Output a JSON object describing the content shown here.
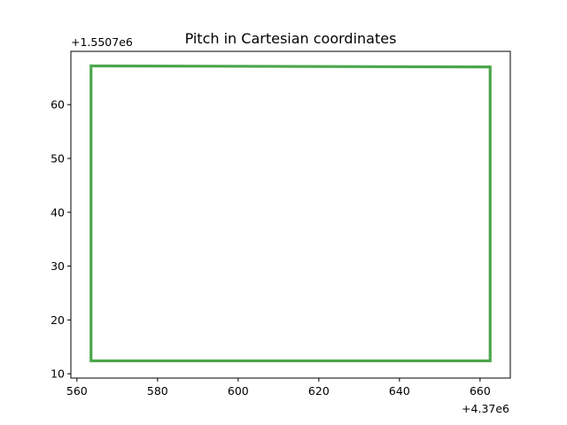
{
  "chart_data": {
    "type": "line",
    "title": "Pitch in Cartesian coordinates",
    "xlabel": "",
    "ylabel": "",
    "x_offset_label": "+4.37e6",
    "y_offset_label": "+1.5507e6",
    "xlim": [
      558.5,
      667.5
    ],
    "ylim": [
      9.2,
      69.9
    ],
    "x_ticks": [
      560,
      580,
      600,
      620,
      640,
      660
    ],
    "x_tick_labels": [
      "560",
      "580",
      "600",
      "620",
      "640",
      "660"
    ],
    "y_ticks": [
      10,
      20,
      30,
      40,
      50,
      60
    ],
    "y_tick_labels": [
      "10",
      "20",
      "30",
      "40",
      "50",
      "60"
    ],
    "grid": false,
    "legend": "none",
    "series": [
      {
        "color": "#4ca64c",
        "x": [
          563.5,
          662.5,
          662.5,
          563.5,
          563.5
        ],
        "y": [
          67.2,
          67.0,
          12.4,
          12.4,
          67.2
        ]
      }
    ]
  }
}
